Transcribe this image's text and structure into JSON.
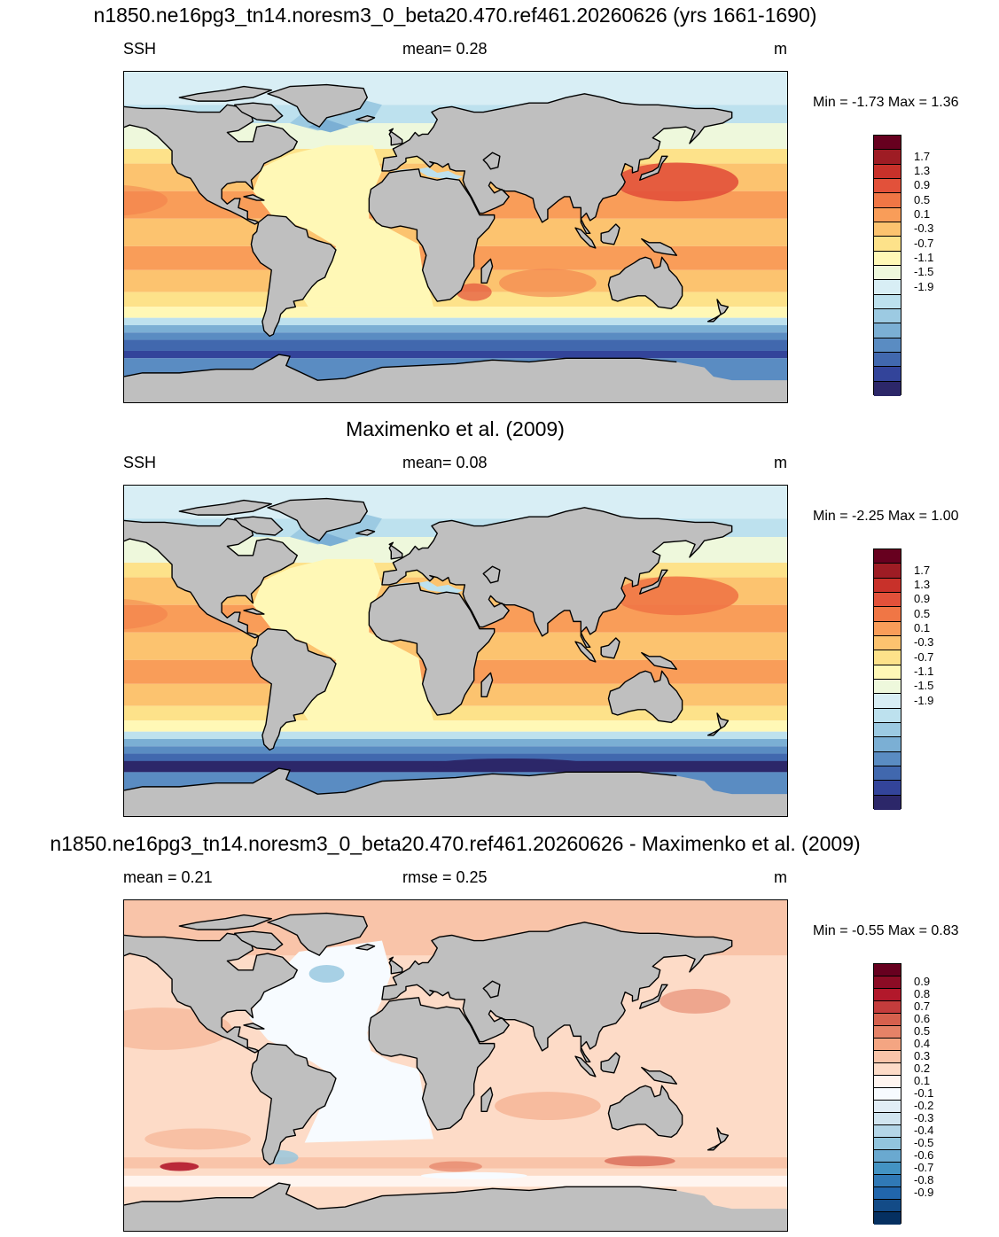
{
  "panels": [
    {
      "id": "model",
      "title": "n1850.ne16pg3_tn14.noresm3_0_beta20.470.ref461.20260626 (yrs 1661-1690)",
      "left_label": "SSH",
      "center_label": "mean=   0.28",
      "units": "m",
      "minmax": "Min =  -1.73 Max =   1.36",
      "map_style": "model",
      "colorbar": {
        "colors": [
          "#67001f",
          "#9e1c24",
          "#c8312a",
          "#e2513a",
          "#f07645",
          "#f99d59",
          "#fcc36f",
          "#fde28a",
          "#fff8b6",
          "#eef8dc",
          "#d8eef5",
          "#bde1ee",
          "#9ccae2",
          "#7bafd4",
          "#5a8cc2",
          "#4168ae",
          "#33449a",
          "#2c2769"
        ],
        "ticks": [
          "1.7",
          "1.3",
          "0.9",
          "0.5",
          "0.1",
          "-0.3",
          "-0.7",
          "-1.1",
          "-1.5",
          "-1.9"
        ]
      }
    },
    {
      "id": "obs",
      "title": "Maximenko et al. (2009)",
      "left_label": "SSH",
      "center_label": "mean=   0.08",
      "units": "m",
      "minmax": "Min =  -2.25 Max =   1.00",
      "map_style": "obs",
      "colorbar": {
        "colors": [
          "#67001f",
          "#9e1c24",
          "#c8312a",
          "#e2513a",
          "#f07645",
          "#f99d59",
          "#fcc36f",
          "#fde28a",
          "#fff8b6",
          "#eef8dc",
          "#d8eef5",
          "#bde1ee",
          "#9ccae2",
          "#7bafd4",
          "#5a8cc2",
          "#4168ae",
          "#33449a",
          "#2c2769"
        ],
        "ticks": [
          "1.7",
          "1.3",
          "0.9",
          "0.5",
          "0.1",
          "-0.3",
          "-0.7",
          "-1.1",
          "-1.5",
          "-1.9"
        ]
      }
    },
    {
      "id": "diff",
      "title": "n1850.ne16pg3_tn14.noresm3_0_beta20.470.ref461.20260626 - Maximenko et al. (2009)",
      "left_label": "mean =    0.21",
      "center_label": "rmse =   0.25",
      "units": "m",
      "minmax": "Min =  -0.55 Max =   0.83",
      "map_style": "diff",
      "colorbar": {
        "colors": [
          "#67001f",
          "#8c0c25",
          "#b2182b",
          "#c43c3c",
          "#d6604d",
          "#e58267",
          "#f4a582",
          "#f9c4a9",
          "#fddbc7",
          "#fff5f0",
          "#f7fbff",
          "#e1edf6",
          "#d1e5f0",
          "#b4d6e8",
          "#92c5de",
          "#6aa9d0",
          "#4393c3",
          "#3079b6",
          "#2166ac",
          "#134b87",
          "#053061"
        ],
        "ticks": [
          "0.9",
          "0.8",
          "0.7",
          "0.6",
          "0.5",
          "0.4",
          "0.3",
          "0.2",
          "0.1",
          "-0.1",
          "-0.2",
          "-0.3",
          "-0.4",
          "-0.5",
          "-0.6",
          "-0.7",
          "-0.8",
          "-0.9"
        ]
      }
    }
  ],
  "colors": {
    "land": "#bfbfbf",
    "coast": "#000000"
  }
}
